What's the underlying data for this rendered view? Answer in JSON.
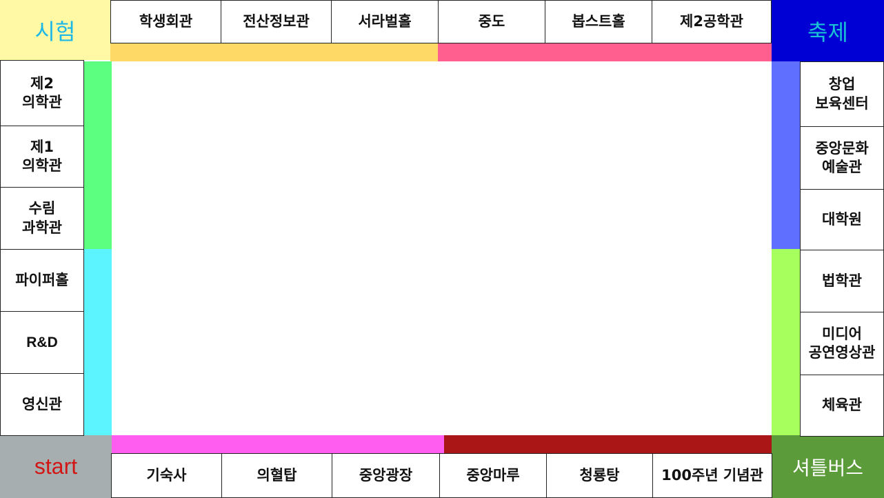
{
  "corners": {
    "top_left": {
      "label": "시험",
      "bg": "#fff9a6",
      "color": "#1cb8e8"
    },
    "top_right": {
      "label": "축제",
      "bg": "#0000d4",
      "color": "#19c2d4"
    },
    "bottom_left": {
      "label": "start",
      "bg": "#a7aeb0",
      "color": "#d21515"
    },
    "bottom_right": {
      "label": "셔틀버스",
      "bg": "#5c9b3a",
      "color": "#ffffff"
    }
  },
  "top_row": [
    {
      "label": "학생회관"
    },
    {
      "label": "전산정보관"
    },
    {
      "label": "서라벌홀"
    },
    {
      "label": "중도"
    },
    {
      "label": "봅스트홀"
    },
    {
      "label": "제2공학관"
    }
  ],
  "left_column": [
    {
      "label": "제2\n의학관"
    },
    {
      "label": "제1\n의학관"
    },
    {
      "label": "수림\n과학관"
    },
    {
      "label": "파이퍼홀"
    },
    {
      "label": "R&D"
    },
    {
      "label": "영신관"
    }
  ],
  "right_column": [
    {
      "label": "창업\n보육센터"
    },
    {
      "label": "중앙문화\n예술관"
    },
    {
      "label": "대학원"
    },
    {
      "label": "법학관"
    },
    {
      "label": "미디어\n공연영상관"
    },
    {
      "label": "체육관"
    }
  ],
  "bottom_row": [
    {
      "label": "기숙사"
    },
    {
      "label": "의혈탑"
    },
    {
      "label": "중앙광장"
    },
    {
      "label": "중앙마루"
    },
    {
      "label": "청룡탕"
    },
    {
      "label": "100주년 기념관"
    }
  ],
  "color_groups": {
    "top_left_group": "#ffd966",
    "top_right_group": "#ff5f8f",
    "left_top_group": "#5cff7f",
    "left_bottom_group": "#5cf5ff",
    "right_top_group": "#5f6fff",
    "right_bottom_group": "#a6ff5c",
    "bottom_left_group": "#ff5cf0",
    "bottom_right_group": "#aa1616"
  }
}
